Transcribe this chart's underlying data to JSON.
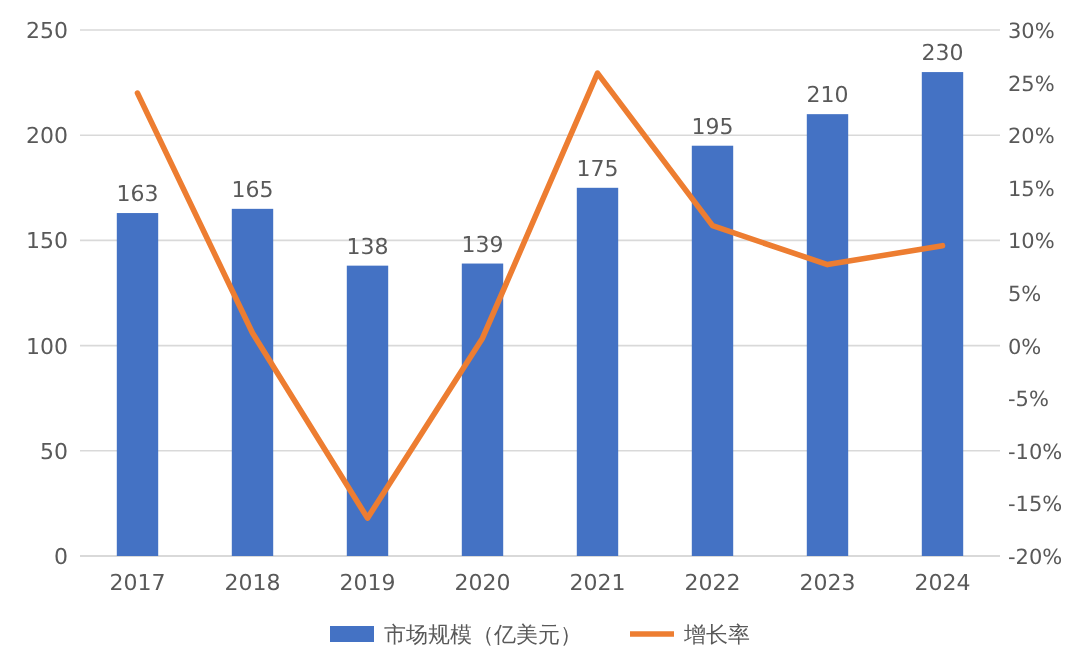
{
  "chart_data": {
    "type": "bar",
    "categories": [
      "2017",
      "2018",
      "2019",
      "2020",
      "2021",
      "2022",
      "2023",
      "2024"
    ],
    "series": [
      {
        "name": "市场规模（亿美元）",
        "color": "#4472c4",
        "values": [
          163,
          165,
          138,
          139,
          175,
          195,
          210,
          230
        ],
        "value_labels": [
          "163",
          "165",
          "138",
          "139",
          "175",
          "195",
          "210",
          "230"
        ]
      },
      {
        "name": "增长率",
        "type": "line",
        "axis": "y2",
        "color": "#ed7d31",
        "values": [
          24,
          1.2,
          -16.4,
          0.7,
          25.9,
          11.4,
          7.7,
          9.5
        ]
      }
    ],
    "ylim": [
      0,
      250
    ],
    "yticks": [
      0,
      50,
      100,
      150,
      200,
      250
    ],
    "y2lim": [
      -20,
      30
    ],
    "y2ticks": [
      {
        "value": -20,
        "label": "-20%"
      },
      {
        "value": -15,
        "label": "-15%"
      },
      {
        "value": -10,
        "label": "-10%"
      },
      {
        "value": -5,
        "label": "-5%"
      },
      {
        "value": 0,
        "label": "0%"
      },
      {
        "value": 5,
        "label": "5%"
      },
      {
        "value": 10,
        "label": "10%"
      },
      {
        "value": 15,
        "label": "15%"
      },
      {
        "value": 20,
        "label": "20%"
      },
      {
        "value": 25,
        "label": "25%"
      },
      {
        "value": 30,
        "label": "30%"
      }
    ],
    "grid": "y",
    "legend": "bottom",
    "marker": "none",
    "line_style": "solid"
  }
}
